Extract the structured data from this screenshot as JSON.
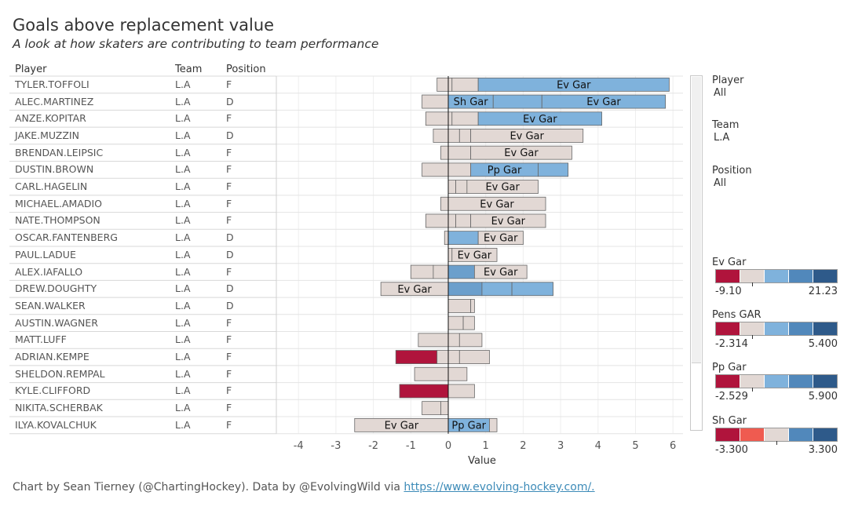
{
  "title": "Goals above replacement value",
  "subtitle": "A look at how skaters are contributing to team performance",
  "table": {
    "headers": {
      "player": "Player",
      "team": "Team",
      "position": "Position"
    },
    "rows": [
      {
        "player": "TYLER.TOFFOLI",
        "team": "L.A",
        "position": "F"
      },
      {
        "player": "ALEC.MARTINEZ",
        "team": "L.A",
        "position": "D"
      },
      {
        "player": "ANZE.KOPITAR",
        "team": "L.A",
        "position": "F"
      },
      {
        "player": "JAKE.MUZZIN",
        "team": "L.A",
        "position": "D"
      },
      {
        "player": "BRENDAN.LEIPSIC",
        "team": "L.A",
        "position": "F"
      },
      {
        "player": "DUSTIN.BROWN",
        "team": "L.A",
        "position": "F"
      },
      {
        "player": "CARL.HAGELIN",
        "team": "L.A",
        "position": "F"
      },
      {
        "player": "MICHAEL.AMADIO",
        "team": "L.A",
        "position": "F"
      },
      {
        "player": "NATE.THOMPSON",
        "team": "L.A",
        "position": "F"
      },
      {
        "player": "OSCAR.FANTENBERG",
        "team": "L.A",
        "position": "D"
      },
      {
        "player": "PAUL.LADUE",
        "team": "L.A",
        "position": "D"
      },
      {
        "player": "ALEX.IAFALLO",
        "team": "L.A",
        "position": "F"
      },
      {
        "player": "DREW.DOUGHTY",
        "team": "L.A",
        "position": "D"
      },
      {
        "player": "SEAN.WALKER",
        "team": "L.A",
        "position": "D"
      },
      {
        "player": "AUSTIN.WAGNER",
        "team": "L.A",
        "position": "F"
      },
      {
        "player": "MATT.LUFF",
        "team": "L.A",
        "position": "F"
      },
      {
        "player": "ADRIAN.KEMPE",
        "team": "L.A",
        "position": "F"
      },
      {
        "player": "SHELDON.REMPAL",
        "team": "L.A",
        "position": "F"
      },
      {
        "player": "KYLE.CLIFFORD",
        "team": "L.A",
        "position": "F"
      },
      {
        "player": "NIKITA.SCHERBAK",
        "team": "L.A",
        "position": "F"
      },
      {
        "player": "ILYA.KOVALCHUK",
        "team": "L.A",
        "position": "F"
      }
    ]
  },
  "filters": [
    {
      "label": "Player",
      "value": "All"
    },
    {
      "label": "Team",
      "value": "L.A"
    },
    {
      "label": "Position",
      "value": "All"
    }
  ],
  "legends": [
    {
      "title": "Ev Gar",
      "min": "-9.10",
      "max": "21.23",
      "colors": [
        "#b0143c",
        "#e2d8d4",
        "#7fb2dc",
        "#5188bb",
        "#2e5a8a"
      ]
    },
    {
      "title": "Pens GAR",
      "min": "-2.314",
      "max": "5.400",
      "colors": [
        "#b0143c",
        "#e2d8d4",
        "#7fb2dc",
        "#5188bb",
        "#2e5a8a"
      ]
    },
    {
      "title": "Pp Gar",
      "min": "-2.529",
      "max": "5.900",
      "colors": [
        "#b0143c",
        "#e2d8d4",
        "#7fb2dc",
        "#5188bb",
        "#2e5a8a"
      ]
    },
    {
      "title": "Sh Gar",
      "min": "-3.300",
      "max": "3.300",
      "colors": [
        "#b0143c",
        "#ef5b50",
        "#e2d8d4",
        "#5188bb",
        "#2e5a8a"
      ]
    }
  ],
  "footer": {
    "text": "Chart by Sean Tierney (@ChartingHockey). Data by @EvolvingWild via ",
    "link": "https://www.evolving-hockey.com/."
  },
  "chart_data": {
    "type": "bar",
    "xlabel": "Value",
    "xlim": [
      -4.4,
      6.3
    ],
    "xticks": [
      -4,
      -3,
      -2,
      -1,
      0,
      1,
      2,
      3,
      4,
      5,
      6
    ],
    "grid": true,
    "colors": {
      "neutral": "#e2d8d4",
      "blue_light": "#7fb2dc",
      "blue_mid": "#6b9fcc",
      "red": "#b0143c"
    },
    "rows": [
      {
        "player": "TYLER.TOFFOLI",
        "segments": [
          {
            "start": -0.3,
            "end": 0,
            "color": "neutral"
          },
          {
            "start": 0,
            "end": 0.1,
            "color": "neutral"
          },
          {
            "start": 0.1,
            "end": 0.8,
            "color": "neutral"
          },
          {
            "start": 0.8,
            "end": 5.9,
            "color": "blue_light",
            "label": "Ev Gar"
          }
        ]
      },
      {
        "player": "ALEC.MARTINEZ",
        "segments": [
          {
            "start": -0.7,
            "end": 0,
            "color": "neutral"
          },
          {
            "start": 0,
            "end": 1.2,
            "color": "blue_light",
            "label": "Sh Gar"
          },
          {
            "start": 1.2,
            "end": 2.5,
            "color": "blue_light"
          },
          {
            "start": 2.5,
            "end": 5.8,
            "color": "blue_light",
            "label": "Ev Gar"
          }
        ]
      },
      {
        "player": "ANZE.KOPITAR",
        "segments": [
          {
            "start": -0.6,
            "end": 0,
            "color": "neutral"
          },
          {
            "start": 0,
            "end": 0.1,
            "color": "neutral"
          },
          {
            "start": 0.1,
            "end": 0.8,
            "color": "neutral"
          },
          {
            "start": 0.8,
            "end": 4.1,
            "color": "blue_light",
            "label": "Ev Gar"
          }
        ]
      },
      {
        "player": "JAKE.MUZZIN",
        "segments": [
          {
            "start": -0.4,
            "end": 0,
            "color": "neutral"
          },
          {
            "start": 0,
            "end": 0.3,
            "color": "neutral"
          },
          {
            "start": 0.3,
            "end": 0.6,
            "color": "neutral"
          },
          {
            "start": 0.6,
            "end": 3.6,
            "color": "neutral",
            "label": "Ev Gar"
          }
        ]
      },
      {
        "player": "BRENDAN.LEIPSIC",
        "segments": [
          {
            "start": -0.2,
            "end": 0,
            "color": "neutral"
          },
          {
            "start": 0,
            "end": 0.6,
            "color": "neutral"
          },
          {
            "start": 0.6,
            "end": 3.3,
            "color": "neutral",
            "label": "Ev Gar"
          }
        ]
      },
      {
        "player": "DUSTIN.BROWN",
        "segments": [
          {
            "start": -0.7,
            "end": 0,
            "color": "neutral"
          },
          {
            "start": 0,
            "end": 0.6,
            "color": "neutral"
          },
          {
            "start": 0.6,
            "end": 2.4,
            "color": "blue_light",
            "label": "Pp Gar"
          },
          {
            "start": 2.4,
            "end": 3.2,
            "color": "blue_light"
          }
        ]
      },
      {
        "player": "CARL.HAGELIN",
        "segments": [
          {
            "start": 0,
            "end": 0.2,
            "color": "neutral"
          },
          {
            "start": 0.2,
            "end": 0.5,
            "color": "neutral"
          },
          {
            "start": 0.5,
            "end": 2.4,
            "color": "neutral",
            "label": "Ev Gar"
          }
        ]
      },
      {
        "player": "MICHAEL.AMADIO",
        "segments": [
          {
            "start": -0.2,
            "end": 0,
            "color": "neutral"
          },
          {
            "start": 0,
            "end": 2.6,
            "color": "neutral",
            "label": "Ev Gar"
          }
        ]
      },
      {
        "player": "NATE.THOMPSON",
        "segments": [
          {
            "start": -0.6,
            "end": 0,
            "color": "neutral"
          },
          {
            "start": 0,
            "end": 0.2,
            "color": "neutral"
          },
          {
            "start": 0.2,
            "end": 0.6,
            "color": "neutral"
          },
          {
            "start": 0.6,
            "end": 2.6,
            "color": "neutral",
            "label": "Ev Gar"
          }
        ]
      },
      {
        "player": "OSCAR.FANTENBERG",
        "segments": [
          {
            "start": -0.1,
            "end": 0,
            "color": "neutral"
          },
          {
            "start": 0,
            "end": 0.8,
            "color": "blue_light"
          },
          {
            "start": 0.8,
            "end": 2.0,
            "color": "neutral",
            "label": "Ev Gar"
          }
        ]
      },
      {
        "player": "PAUL.LADUE",
        "segments": [
          {
            "start": 0,
            "end": 0.1,
            "color": "neutral"
          },
          {
            "start": 0.1,
            "end": 1.3,
            "color": "neutral",
            "label": "Ev Gar"
          }
        ]
      },
      {
        "player": "ALEX.IAFALLO",
        "segments": [
          {
            "start": -1.0,
            "end": -0.4,
            "color": "neutral"
          },
          {
            "start": -0.4,
            "end": 0,
            "color": "neutral"
          },
          {
            "start": 0,
            "end": 0.7,
            "color": "blue_mid"
          },
          {
            "start": 0.7,
            "end": 2.1,
            "color": "neutral",
            "label": "Ev Gar"
          }
        ]
      },
      {
        "player": "DREW.DOUGHTY",
        "segments": [
          {
            "start": -1.8,
            "end": 0,
            "color": "neutral",
            "label": "Ev Gar"
          },
          {
            "start": 0,
            "end": 0.9,
            "color": "blue_mid"
          },
          {
            "start": 0.9,
            "end": 1.7,
            "color": "blue_light"
          },
          {
            "start": 1.7,
            "end": 2.8,
            "color": "blue_light"
          }
        ]
      },
      {
        "player": "SEAN.WALKER",
        "segments": [
          {
            "start": 0,
            "end": 0.6,
            "color": "neutral"
          },
          {
            "start": 0.6,
            "end": 0.7,
            "color": "neutral"
          }
        ]
      },
      {
        "player": "AUSTIN.WAGNER",
        "segments": [
          {
            "start": 0,
            "end": 0.4,
            "color": "neutral"
          },
          {
            "start": 0.4,
            "end": 0.7,
            "color": "neutral"
          }
        ]
      },
      {
        "player": "MATT.LUFF",
        "segments": [
          {
            "start": -0.8,
            "end": 0,
            "color": "neutral"
          },
          {
            "start": 0,
            "end": 0.3,
            "color": "neutral"
          },
          {
            "start": 0.3,
            "end": 0.9,
            "color": "neutral"
          }
        ]
      },
      {
        "player": "ADRIAN.KEMPE",
        "segments": [
          {
            "start": -1.4,
            "end": -0.3,
            "color": "red"
          },
          {
            "start": -0.3,
            "end": 0,
            "color": "neutral"
          },
          {
            "start": 0,
            "end": 0.3,
            "color": "neutral"
          },
          {
            "start": 0.3,
            "end": 1.1,
            "color": "neutral"
          }
        ]
      },
      {
        "player": "SHELDON.REMPAL",
        "segments": [
          {
            "start": -0.9,
            "end": 0,
            "color": "neutral"
          },
          {
            "start": 0,
            "end": 0.5,
            "color": "neutral"
          }
        ]
      },
      {
        "player": "KYLE.CLIFFORD",
        "segments": [
          {
            "start": -1.3,
            "end": 0,
            "color": "red"
          },
          {
            "start": 0,
            "end": 0.7,
            "color": "neutral"
          }
        ]
      },
      {
        "player": "NIKITA.SCHERBAK",
        "segments": [
          {
            "start": -0.7,
            "end": -0.2,
            "color": "neutral"
          },
          {
            "start": -0.2,
            "end": 0,
            "color": "neutral"
          }
        ]
      },
      {
        "player": "ILYA.KOVALCHUK",
        "segments": [
          {
            "start": -2.5,
            "end": 0,
            "color": "neutral",
            "label": "Ev Gar"
          },
          {
            "start": 0,
            "end": 1.1,
            "color": "blue_light",
            "label": "Pp Gar"
          },
          {
            "start": 1.1,
            "end": 1.3,
            "color": "neutral"
          }
        ]
      }
    ]
  }
}
